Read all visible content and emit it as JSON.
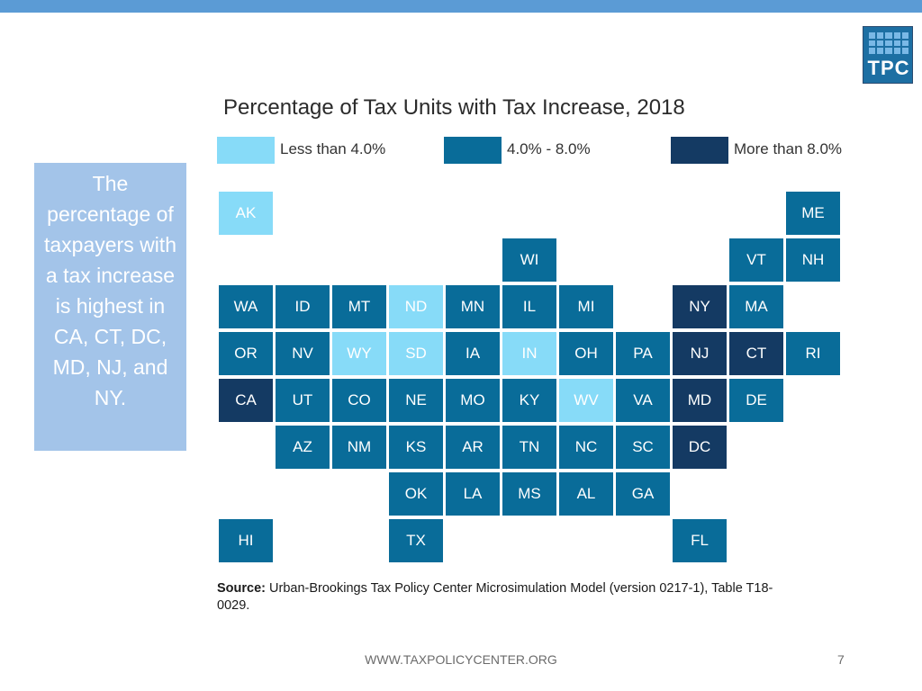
{
  "logo": {
    "text": "TPC"
  },
  "callout": {
    "text": "The percentage of taxpayers with a tax increase is highest in CA, CT, DC, MD, NJ, and NY."
  },
  "map": {
    "title": "Percentage of Tax Units with Tax Increase, 2018",
    "colors": {
      "low": "#87dbf8",
      "mid": "#096c99",
      "high": "#143a63"
    },
    "legend": [
      {
        "key": "low",
        "label": "Less than 4.0%"
      },
      {
        "key": "mid",
        "label": "4.0% - 8.0%"
      },
      {
        "key": "high",
        "label": "More than 8.0%"
      }
    ],
    "states": [
      {
        "abbr": "AK",
        "cat": "low"
      },
      {
        "abbr": "ME",
        "cat": "mid"
      },
      {
        "abbr": "WI",
        "cat": "mid"
      },
      {
        "abbr": "VT",
        "cat": "mid"
      },
      {
        "abbr": "NH",
        "cat": "mid"
      },
      {
        "abbr": "WA",
        "cat": "mid"
      },
      {
        "abbr": "ID",
        "cat": "mid"
      },
      {
        "abbr": "MT",
        "cat": "mid"
      },
      {
        "abbr": "ND",
        "cat": "low"
      },
      {
        "abbr": "MN",
        "cat": "mid"
      },
      {
        "abbr": "IL",
        "cat": "mid"
      },
      {
        "abbr": "MI",
        "cat": "mid"
      },
      {
        "abbr": "NY",
        "cat": "high"
      },
      {
        "abbr": "MA",
        "cat": "mid"
      },
      {
        "abbr": "OR",
        "cat": "mid"
      },
      {
        "abbr": "NV",
        "cat": "mid"
      },
      {
        "abbr": "WY",
        "cat": "low"
      },
      {
        "abbr": "SD",
        "cat": "low"
      },
      {
        "abbr": "IA",
        "cat": "mid"
      },
      {
        "abbr": "IN",
        "cat": "low"
      },
      {
        "abbr": "OH",
        "cat": "mid"
      },
      {
        "abbr": "PA",
        "cat": "mid"
      },
      {
        "abbr": "NJ",
        "cat": "high"
      },
      {
        "abbr": "CT",
        "cat": "high"
      },
      {
        "abbr": "RI",
        "cat": "mid"
      },
      {
        "abbr": "CA",
        "cat": "high"
      },
      {
        "abbr": "UT",
        "cat": "mid"
      },
      {
        "abbr": "CO",
        "cat": "mid"
      },
      {
        "abbr": "NE",
        "cat": "mid"
      },
      {
        "abbr": "MO",
        "cat": "mid"
      },
      {
        "abbr": "KY",
        "cat": "mid"
      },
      {
        "abbr": "WV",
        "cat": "low"
      },
      {
        "abbr": "VA",
        "cat": "mid"
      },
      {
        "abbr": "MD",
        "cat": "high"
      },
      {
        "abbr": "DE",
        "cat": "mid"
      },
      {
        "abbr": "AZ",
        "cat": "mid"
      },
      {
        "abbr": "NM",
        "cat": "mid"
      },
      {
        "abbr": "KS",
        "cat": "mid"
      },
      {
        "abbr": "AR",
        "cat": "mid"
      },
      {
        "abbr": "TN",
        "cat": "mid"
      },
      {
        "abbr": "NC",
        "cat": "mid"
      },
      {
        "abbr": "SC",
        "cat": "mid"
      },
      {
        "abbr": "DC",
        "cat": "high"
      },
      {
        "abbr": "OK",
        "cat": "mid"
      },
      {
        "abbr": "LA",
        "cat": "mid"
      },
      {
        "abbr": "MS",
        "cat": "mid"
      },
      {
        "abbr": "AL",
        "cat": "mid"
      },
      {
        "abbr": "GA",
        "cat": "mid"
      },
      {
        "abbr": "HI",
        "cat": "mid"
      },
      {
        "abbr": "TX",
        "cat": "mid"
      },
      {
        "abbr": "FL",
        "cat": "mid"
      }
    ]
  },
  "source": {
    "label": "Source:",
    "text": " Urban-Brookings Tax Policy Center Microsimulation Model (version 0217-1), Table T18-0029."
  },
  "footer": {
    "url": "WWW.TAXPOLICYCENTER.ORG",
    "page": "7"
  }
}
